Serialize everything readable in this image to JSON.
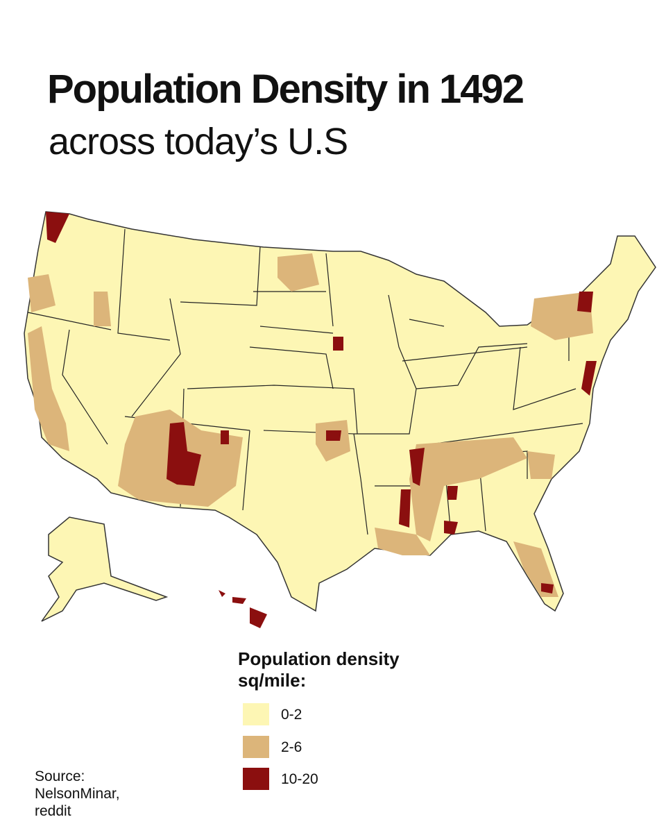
{
  "title": "Population Density in 1492",
  "subtitle": "across today’s U.S",
  "legend": {
    "title_lines": [
      "Population density",
      "sq/mile:"
    ],
    "items": [
      {
        "label": "0-2",
        "color": "#fdf6b4"
      },
      {
        "label": "2-6",
        "color": "#dcb57a"
      },
      {
        "label": "10-20",
        "color": "#8b0f0f"
      }
    ]
  },
  "source_lines": [
    "Source:",
    "NelsonMinar,",
    "reddit"
  ]
}
